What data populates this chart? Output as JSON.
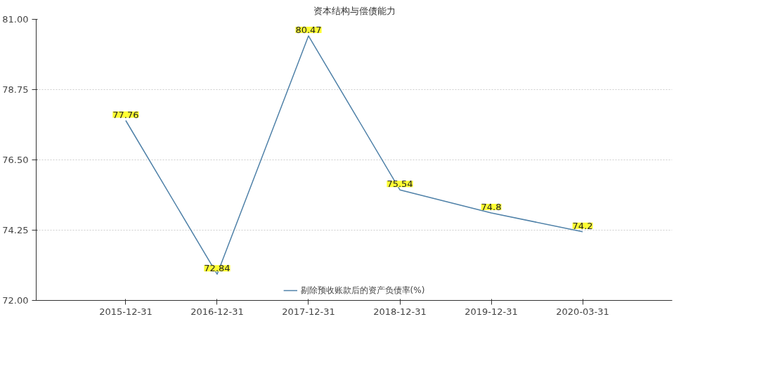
{
  "chart_data": {
    "type": "line",
    "title": "资本结构与偿债能力",
    "categories": [
      "2015-12-31",
      "2016-12-31",
      "2017-12-31",
      "2018-12-31",
      "2019-12-31",
      "2020-03-31"
    ],
    "series": [
      {
        "name": "剔除预收账款后的资产负债率(%)",
        "color": "#4f81a8",
        "values": [
          77.76,
          72.84,
          80.47,
          75.54,
          74.8,
          74.2
        ]
      }
    ],
    "ylim": [
      72,
      81
    ],
    "yticks": [
      {
        "value": 72,
        "label": "72.00"
      },
      {
        "value": 74.25,
        "label": "74.25"
      },
      {
        "value": 76.5,
        "label": "76.50"
      },
      {
        "value": 78.75,
        "label": "78.75"
      },
      {
        "value": 81,
        "label": "81.00"
      }
    ],
    "grid": "y",
    "legend": "bottom",
    "data_labels": true,
    "marker": "none",
    "line_style": "solid"
  }
}
